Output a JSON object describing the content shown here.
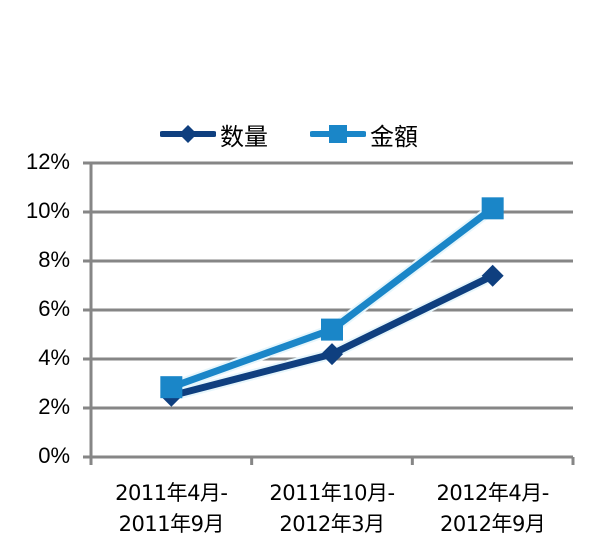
{
  "chart_data": {
    "type": "line",
    "title": "",
    "xlabel": "",
    "ylabel": "",
    "categories": [
      "2011年4月-2011年9月",
      "2011年10月-2012年3月",
      "2012年4月-2012年9月"
    ],
    "category_lines": [
      [
        "2011年4月-",
        "2011年9月"
      ],
      [
        "2011年10月-",
        "2012年3月"
      ],
      [
        "2012年4月-",
        "2012年9月"
      ]
    ],
    "series": [
      {
        "name": "数量",
        "marker": "diamond",
        "color": "#0F3F7F",
        "values": [
          2.5,
          4.2,
          7.4
        ]
      },
      {
        "name": "金額",
        "marker": "square",
        "color": "#1A86C8",
        "values": [
          2.85,
          5.2,
          10.15
        ]
      }
    ],
    "y_ticks": [
      "0%",
      "2%",
      "4%",
      "6%",
      "8%",
      "10%",
      "12%"
    ],
    "ylim": [
      0,
      12
    ],
    "y_unit": "%",
    "grid": true,
    "legend_position": "top"
  },
  "legend": {
    "items": [
      {
        "label": "数量"
      },
      {
        "label": "金額"
      }
    ]
  },
  "colors": {
    "gridline": "#868686",
    "axis": "#868686",
    "series_quantity": "#0F3F7F",
    "series_amount": "#1A86C8"
  }
}
